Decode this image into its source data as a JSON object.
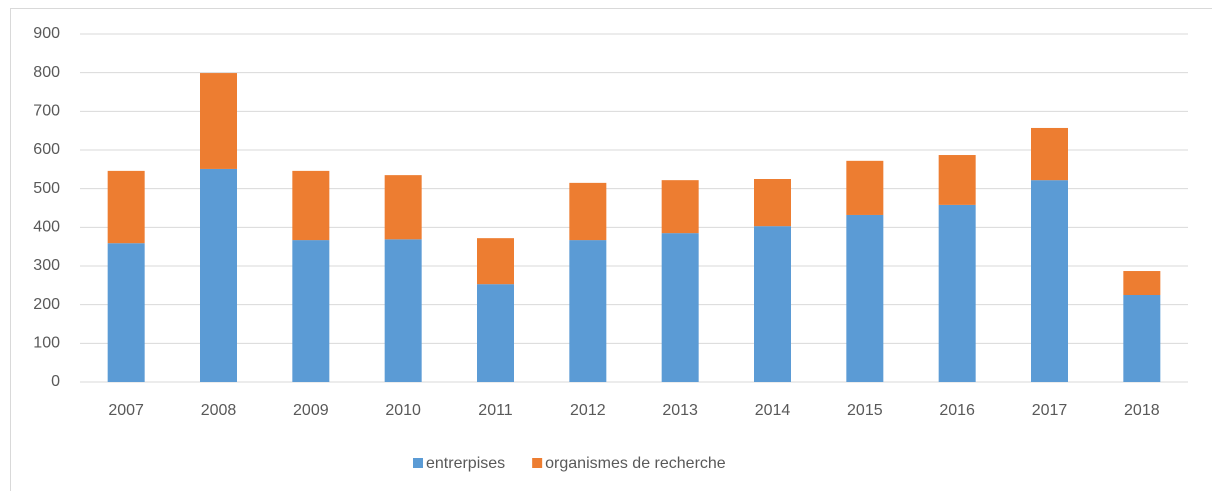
{
  "chart_data": {
    "type": "stacked_bar",
    "categories": [
      "2007",
      "2008",
      "2009",
      "2010",
      "2011",
      "2012",
      "2013",
      "2014",
      "2015",
      "2016",
      "2017",
      "2018"
    ],
    "series": [
      {
        "name": "entrerpises",
        "color": "#5b9bd5",
        "values": [
          359,
          551,
          367,
          369,
          253,
          367,
          385,
          403,
          432,
          458,
          522,
          225
        ]
      },
      {
        "name": "organismes de recherche",
        "color": "#ed7d31",
        "values": [
          187,
          248,
          179,
          166,
          119,
          148,
          137,
          122,
          140,
          129,
          135,
          62
        ]
      }
    ],
    "ylim": [
      0,
      900
    ],
    "yticks": [
      0,
      100,
      200,
      300,
      400,
      500,
      600,
      700,
      800,
      900
    ],
    "grid": true,
    "legend": "bottom"
  }
}
